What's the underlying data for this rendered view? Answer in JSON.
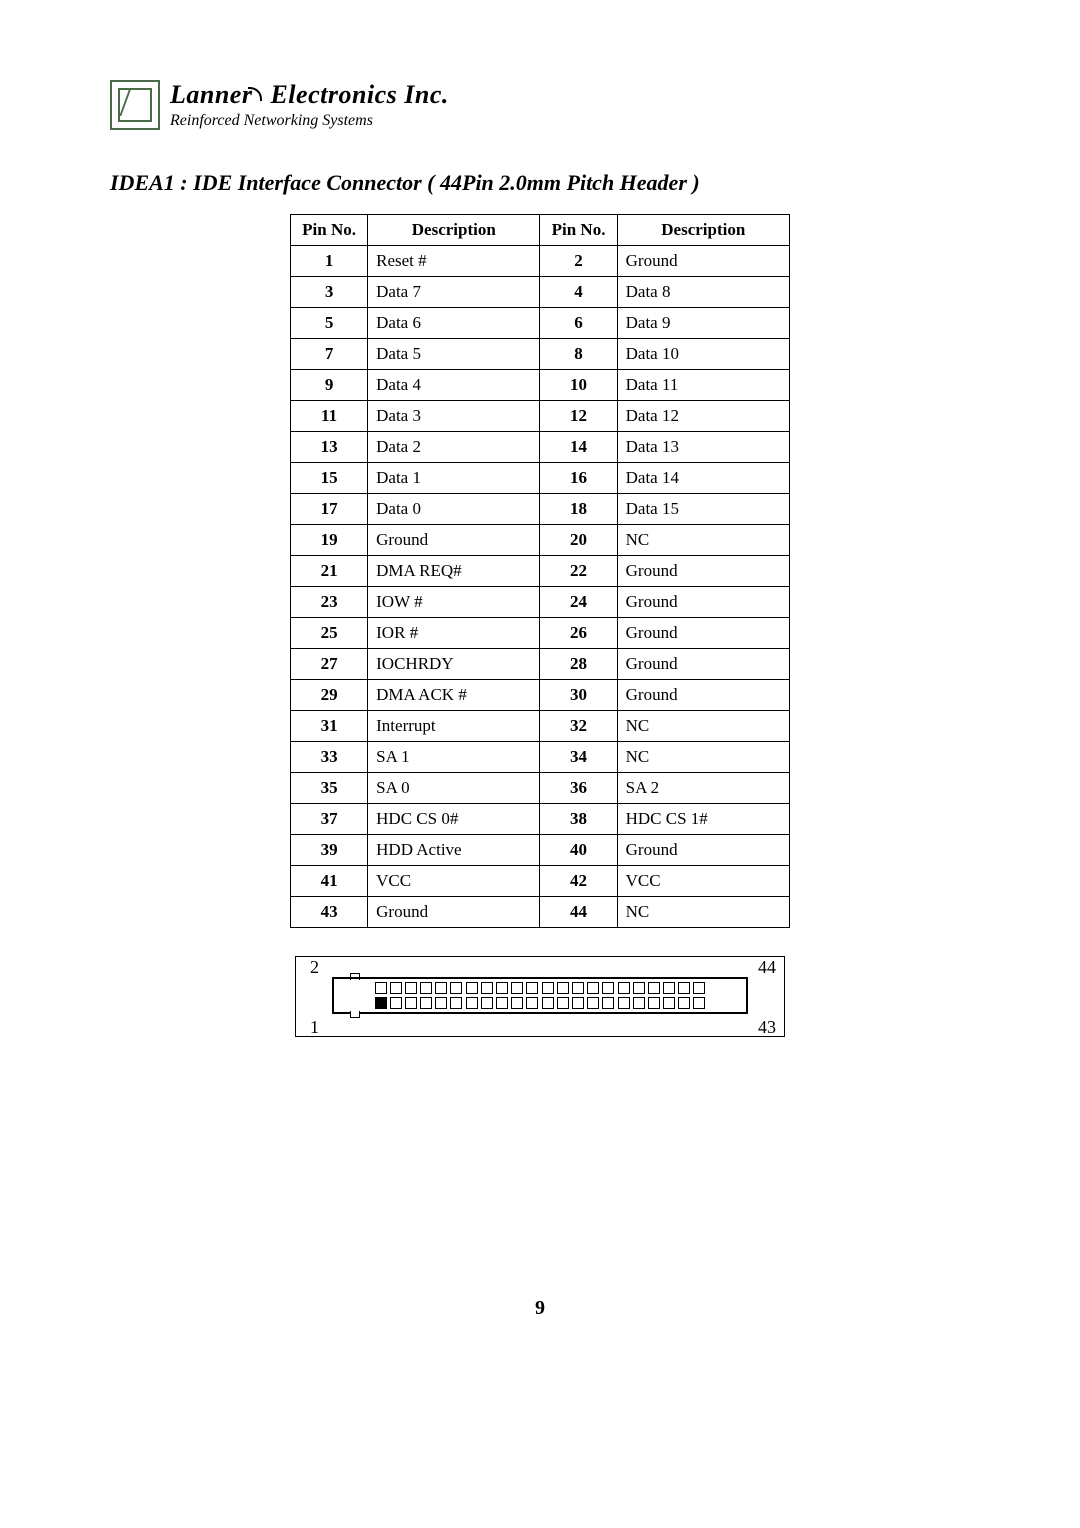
{
  "header": {
    "company_prefix": "Lanner",
    "company_suffix": " Electronics Inc.",
    "tagline": "Reinforced Networking Systems"
  },
  "section": {
    "title": "IDEA1 : IDE Interface Connector ( 44Pin 2.0mm Pitch Header )"
  },
  "table": {
    "columns": [
      "Pin No.",
      "Description",
      "Pin No.",
      "Description"
    ],
    "rows": [
      [
        "1",
        "Reset #",
        "2",
        "Ground"
      ],
      [
        "3",
        "Data 7",
        "4",
        "Data 8"
      ],
      [
        "5",
        "Data 6",
        "6",
        "Data 9"
      ],
      [
        "7",
        "Data 5",
        "8",
        "Data 10"
      ],
      [
        "9",
        "Data 4",
        "10",
        "Data 11"
      ],
      [
        "11",
        "Data 3",
        "12",
        "Data 12"
      ],
      [
        "13",
        "Data 2",
        "14",
        "Data 13"
      ],
      [
        "15",
        "Data 1",
        "16",
        "Data 14"
      ],
      [
        "17",
        "Data 0",
        "18",
        "Data 15"
      ],
      [
        "19",
        "Ground",
        "20",
        "NC"
      ],
      [
        "21",
        "DMA REQ#",
        "22",
        "Ground"
      ],
      [
        "23",
        "IOW #",
        "24",
        "Ground"
      ],
      [
        "25",
        "IOR #",
        "26",
        "Ground"
      ],
      [
        "27",
        "IOCHRDY",
        "28",
        "Ground"
      ],
      [
        "29",
        "DMA ACK #",
        "30",
        "Ground"
      ],
      [
        "31",
        "Interrupt",
        "32",
        "NC"
      ],
      [
        "33",
        "SA 1",
        "34",
        "NC"
      ],
      [
        "35",
        "SA 0",
        "36",
        "SA 2"
      ],
      [
        "37",
        "HDC CS 0#",
        "38",
        "HDC CS 1#"
      ],
      [
        "39",
        "HDD Active",
        "40",
        "Ground"
      ],
      [
        "41",
        "VCC",
        "42",
        "VCC"
      ],
      [
        "43",
        "Ground",
        "44",
        "NC"
      ]
    ]
  },
  "diagram": {
    "labels": {
      "tl": "2",
      "bl": "1",
      "tr": "44",
      "br": "43"
    },
    "pins_per_row": 22,
    "pin1_filled": true
  },
  "page_number": "9",
  "colors": {
    "text": "#000000",
    "background": "#ffffff",
    "logo_border": "#4a6a4a",
    "table_border": "#000000"
  }
}
